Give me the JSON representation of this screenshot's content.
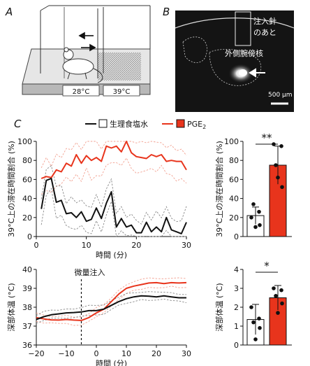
{
  "panels": {
    "a": "A",
    "b": "B",
    "c": "C"
  },
  "panel_a": {
    "left_temp": "28°C",
    "right_temp": "39°C"
  },
  "panel_b": {
    "label_needle_line1": "注入針",
    "label_needle_line2": "のあと",
    "label_nucleus": "外側腕傍核",
    "scale_bar": "500 μm"
  },
  "legend": {
    "saline": "生理食塩水",
    "pge2": "PGE",
    "pge2_sub": "2"
  },
  "colors": {
    "saline": "#111111",
    "pge2": "#e8341c",
    "pge2_light": "#f2a090"
  },
  "chart_data": [
    {
      "type": "line",
      "xlabel": "時間 (分)",
      "ylabel": "39°C上の滞在時間割合 (%)",
      "xlim": [
        0,
        30
      ],
      "ylim": [
        0,
        100
      ],
      "xticks": [
        0,
        10,
        20,
        30
      ],
      "yticks": [
        0,
        20,
        40,
        60,
        80,
        100
      ],
      "x": [
        1,
        2,
        3,
        4,
        5,
        6,
        7,
        8,
        9,
        10,
        11,
        12,
        13,
        14,
        15,
        16,
        17,
        18,
        19,
        20,
        21,
        22,
        23,
        24,
        25,
        26,
        27,
        28,
        29,
        30
      ],
      "series": [
        {
          "name": "PGE2",
          "color": "#e8341c",
          "values": [
            61,
            63,
            62,
            70,
            68,
            77,
            74,
            86,
            77,
            85,
            80,
            83,
            79,
            95,
            93,
            95,
            89,
            101,
            88,
            84,
            83,
            82,
            86,
            84,
            86,
            79,
            80,
            79,
            79,
            70
          ]
        },
        {
          "name": "生理食塩水",
          "color": "#111111",
          "values": [
            29,
            59,
            61,
            36,
            38,
            24,
            25,
            20,
            26,
            16,
            18,
            30,
            19,
            35,
            47,
            10,
            19,
            10,
            12,
            4,
            4,
            15,
            5,
            10,
            5,
            20,
            7,
            5,
            3,
            15
          ]
        }
      ]
    },
    {
      "type": "bar",
      "ylabel": "39°C上の滞在時間割合 (%)",
      "ylim": [
        0,
        100
      ],
      "yticks": [
        0,
        20,
        40,
        60,
        80,
        100
      ],
      "categories": [
        "生理食塩水",
        "PGE2"
      ],
      "values": [
        22,
        75
      ],
      "errors": [
        9,
        20
      ],
      "points": [
        [
          20,
          26,
          34,
          12,
          10
        ],
        [
          97,
          95,
          75,
          52,
          62
        ]
      ],
      "significance": "**"
    },
    {
      "type": "line",
      "xlabel": "時間 (分)",
      "ylabel": "深部体温 (°C)",
      "xlim": [
        -20,
        30
      ],
      "ylim": [
        36,
        40
      ],
      "xticks": [
        -20,
        -10,
        0,
        10,
        20,
        30
      ],
      "yticks": [
        36,
        37,
        38,
        39,
        40
      ],
      "annotation": "微量注入",
      "annotation_x": -5,
      "x": [
        -20,
        -17.5,
        -15,
        -12.5,
        -10,
        -7.5,
        -5,
        -2.5,
        0,
        2.5,
        5,
        7.5,
        10,
        12.5,
        15,
        17.5,
        20,
        22.5,
        25,
        27.5,
        30
      ],
      "series": [
        {
          "name": "PGE2",
          "color": "#e8341c",
          "values": [
            37.45,
            37.38,
            37.33,
            37.32,
            37.35,
            37.32,
            37.3,
            37.45,
            37.7,
            37.9,
            38.3,
            38.7,
            39.0,
            39.12,
            39.2,
            39.28,
            39.3,
            39.25,
            39.3,
            39.28,
            39.3
          ]
        },
        {
          "name": "生理食塩水",
          "color": "#111111",
          "values": [
            37.35,
            37.5,
            37.6,
            37.65,
            37.7,
            37.72,
            37.75,
            37.82,
            37.82,
            37.9,
            38.1,
            38.3,
            38.45,
            38.55,
            38.6,
            38.58,
            38.55,
            38.6,
            38.55,
            38.5,
            38.5
          ]
        }
      ]
    },
    {
      "type": "bar",
      "ylabel": "深部体温 (°C)",
      "ylim": [
        0,
        4
      ],
      "yticks": [
        0,
        1,
        2,
        3,
        4
      ],
      "categories": [
        "生理食塩水",
        "PGE2"
      ],
      "values": [
        1.35,
        2.5
      ],
      "errors": [
        0.8,
        0.65
      ],
      "points": [
        [
          2.0,
          1.4,
          1.2,
          0.9,
          0.3
        ],
        [
          3.0,
          2.9,
          2.6,
          2.2,
          1.7
        ]
      ],
      "significance": "*"
    }
  ]
}
